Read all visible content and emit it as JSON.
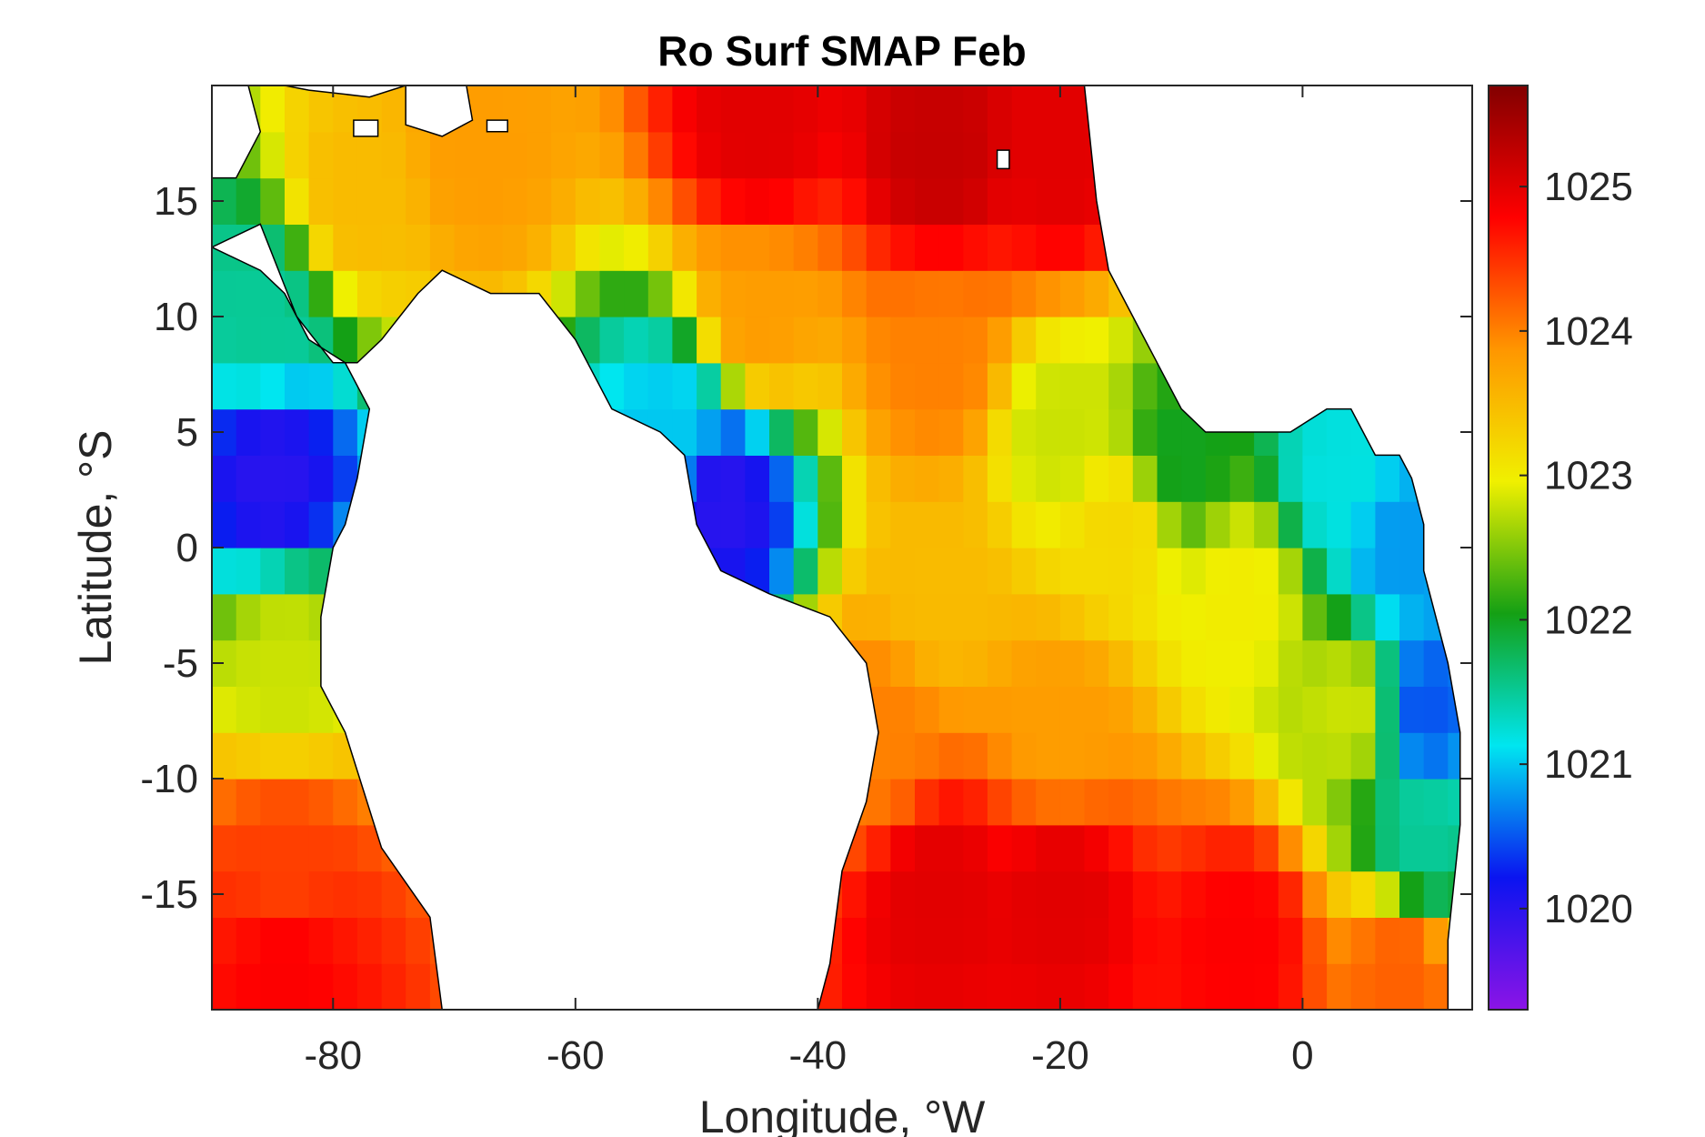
{
  "chart_data": {
    "type": "heatmap",
    "title": "Ro Surf SMAP Feb",
    "xlabel": "Longitude, °W",
    "ylabel": "Latitude, °S",
    "xlim": [
      -90,
      14
    ],
    "ylim": [
      -20,
      20
    ],
    "xticks": [
      -80,
      -60,
      -40,
      -20,
      0
    ],
    "xtick_labels": [
      "-80",
      "-60",
      "-40",
      "-20",
      "0"
    ],
    "yticks": [
      -15,
      -10,
      -5,
      0,
      5,
      10,
      15
    ],
    "ytick_labels": [
      "-15",
      "-10",
      "-5",
      "0",
      "5",
      "10",
      "15"
    ],
    "colorbar": {
      "range": [
        1019.3,
        1025.7
      ],
      "ticks": [
        1020,
        1021,
        1022,
        1023,
        1024,
        1025
      ],
      "tick_labels": [
        "1020",
        "1021",
        "1022",
        "1023",
        "1024",
        "1025"
      ],
      "colormap": [
        "#8c14e6",
        "#0a14f0",
        "#00e6f0",
        "#14a014",
        "#f0f000",
        "#ff9600",
        "#ff0000",
        "#820000"
      ]
    },
    "land_color": "#ffffff",
    "coast_color": "#000000",
    "anchors": [
      {
        "lon": -85,
        "lat": 3,
        "value": 1020.0
      },
      {
        "lon": -86,
        "lat": 10,
        "value": 1021.5
      },
      {
        "lon": -84,
        "lat": -5,
        "value": 1022.8
      },
      {
        "lon": -84,
        "lat": -14,
        "value": 1024.4
      },
      {
        "lon": -84,
        "lat": -18,
        "value": 1024.8
      },
      {
        "lon": -78,
        "lat": 15,
        "value": 1023.5
      },
      {
        "lon": -68,
        "lat": 17,
        "value": 1023.8
      },
      {
        "lon": -52,
        "lat": 5,
        "value": 1021.0
      },
      {
        "lon": -48,
        "lat": 2,
        "value": 1020.0
      },
      {
        "lon": -45,
        "lat": 10,
        "value": 1023.8
      },
      {
        "lon": -45,
        "lat": 18,
        "value": 1025.0
      },
      {
        "lon": -30,
        "lat": 17,
        "value": 1025.2
      },
      {
        "lon": -20,
        "lat": 17,
        "value": 1025.0
      },
      {
        "lon": -30,
        "lat": 8,
        "value": 1024.0
      },
      {
        "lon": -20,
        "lat": 5,
        "value": 1022.8
      },
      {
        "lon": -10,
        "lat": 4,
        "value": 1022.0
      },
      {
        "lon": -15,
        "lat": 1,
        "value": 1023.2
      },
      {
        "lon": -5,
        "lat": -2,
        "value": 1023.0
      },
      {
        "lon": -30,
        "lat": -2,
        "value": 1023.5
      },
      {
        "lon": -20,
        "lat": -8,
        "value": 1023.8
      },
      {
        "lon": -35,
        "lat": -8,
        "value": 1024.0
      },
      {
        "lon": 3,
        "lat": 3,
        "value": 1021.2
      },
      {
        "lon": 8,
        "lat": 0,
        "value": 1020.8
      },
      {
        "lon": 10,
        "lat": -7,
        "value": 1020.5
      },
      {
        "lon": 4,
        "lat": -7,
        "value": 1022.8
      },
      {
        "lon": 10,
        "lat": -13,
        "value": 1021.5
      },
      {
        "lon": -20,
        "lat": -15,
        "value": 1025.0
      },
      {
        "lon": -30,
        "lat": -15,
        "value": 1025.0
      },
      {
        "lon": -5,
        "lat": -17,
        "value": 1024.8
      },
      {
        "lon": 8,
        "lat": -18,
        "value": 1024.2
      }
    ],
    "land_polygons": [
      {
        "name": "south-america",
        "points": [
          [
            -90,
            13
          ],
          [
            -86,
            14
          ],
          [
            -83,
            10
          ],
          [
            -80,
            8
          ],
          [
            -78,
            8
          ],
          [
            -76,
            9
          ],
          [
            -73,
            11
          ],
          [
            -71,
            12
          ],
          [
            -67,
            11
          ],
          [
            -63,
            11
          ],
          [
            -60,
            9
          ],
          [
            -57,
            6
          ],
          [
            -53,
            5
          ],
          [
            -51,
            4
          ],
          [
            -50,
            1
          ],
          [
            -48,
            -1
          ],
          [
            -44,
            -2
          ],
          [
            -39,
            -3
          ],
          [
            -36,
            -5
          ],
          [
            -35,
            -8
          ],
          [
            -36,
            -11
          ],
          [
            -38,
            -14
          ],
          [
            -39,
            -18
          ],
          [
            -40,
            -20
          ],
          [
            -71,
            -20
          ],
          [
            -72,
            -16
          ],
          [
            -76,
            -13
          ],
          [
            -79,
            -8
          ],
          [
            -81,
            -6
          ],
          [
            -81,
            -3
          ],
          [
            -80,
            0
          ],
          [
            -79,
            1
          ],
          [
            -78,
            3
          ],
          [
            -77,
            6
          ],
          [
            -79,
            8
          ],
          [
            -82,
            9
          ],
          [
            -84,
            11
          ],
          [
            -86,
            12
          ],
          [
            -90,
            13
          ]
        ]
      },
      {
        "name": "west-africa",
        "points": [
          [
            -18,
            20
          ],
          [
            -17,
            15
          ],
          [
            -16,
            12
          ],
          [
            -14,
            10
          ],
          [
            -12,
            8
          ],
          [
            -10,
            6
          ],
          [
            -8,
            5
          ],
          [
            -5,
            5
          ],
          [
            -1,
            5
          ],
          [
            2,
            6
          ],
          [
            4,
            6
          ],
          [
            6,
            4
          ],
          [
            8,
            4
          ],
          [
            9,
            3
          ],
          [
            10,
            1
          ],
          [
            10,
            -1
          ],
          [
            12,
            -5
          ],
          [
            13,
            -8
          ],
          [
            13,
            -12
          ],
          [
            12,
            -17
          ],
          [
            12,
            -20
          ],
          [
            14,
            -20
          ],
          [
            14,
            20
          ],
          [
            -18,
            20
          ]
        ]
      },
      {
        "name": "yucatan",
        "points": [
          [
            -90,
            20
          ],
          [
            -87,
            20
          ],
          [
            -86,
            18
          ],
          [
            -88,
            16
          ],
          [
            -90,
            16
          ]
        ]
      },
      {
        "name": "cuba",
        "points": [
          [
            -84,
            20
          ],
          [
            -80,
            20
          ],
          [
            -77,
            20
          ],
          [
            -75,
            20
          ],
          [
            -74,
            20
          ],
          [
            -77,
            19.5
          ],
          [
            -82,
            19.8
          ]
        ]
      },
      {
        "name": "hispaniola",
        "points": [
          [
            -74,
            20
          ],
          [
            -69,
            20
          ],
          [
            -68.5,
            18.5
          ],
          [
            -71,
            17.8
          ],
          [
            -74,
            18.3
          ]
        ]
      },
      {
        "name": "puerto-rico",
        "points": [
          [
            -67.3,
            18.5
          ],
          [
            -65.6,
            18.5
          ],
          [
            -65.6,
            18
          ],
          [
            -67.3,
            18
          ]
        ]
      },
      {
        "name": "jamaica",
        "points": [
          [
            -78.3,
            18.5
          ],
          [
            -76.3,
            18.5
          ],
          [
            -76.3,
            17.8
          ],
          [
            -78.3,
            17.8
          ]
        ]
      },
      {
        "name": "cape-verde",
        "points": [
          [
            -25.2,
            17.2
          ],
          [
            -24.2,
            17.2
          ],
          [
            -24.2,
            16.4
          ],
          [
            -25.2,
            16.4
          ]
        ]
      }
    ]
  }
}
